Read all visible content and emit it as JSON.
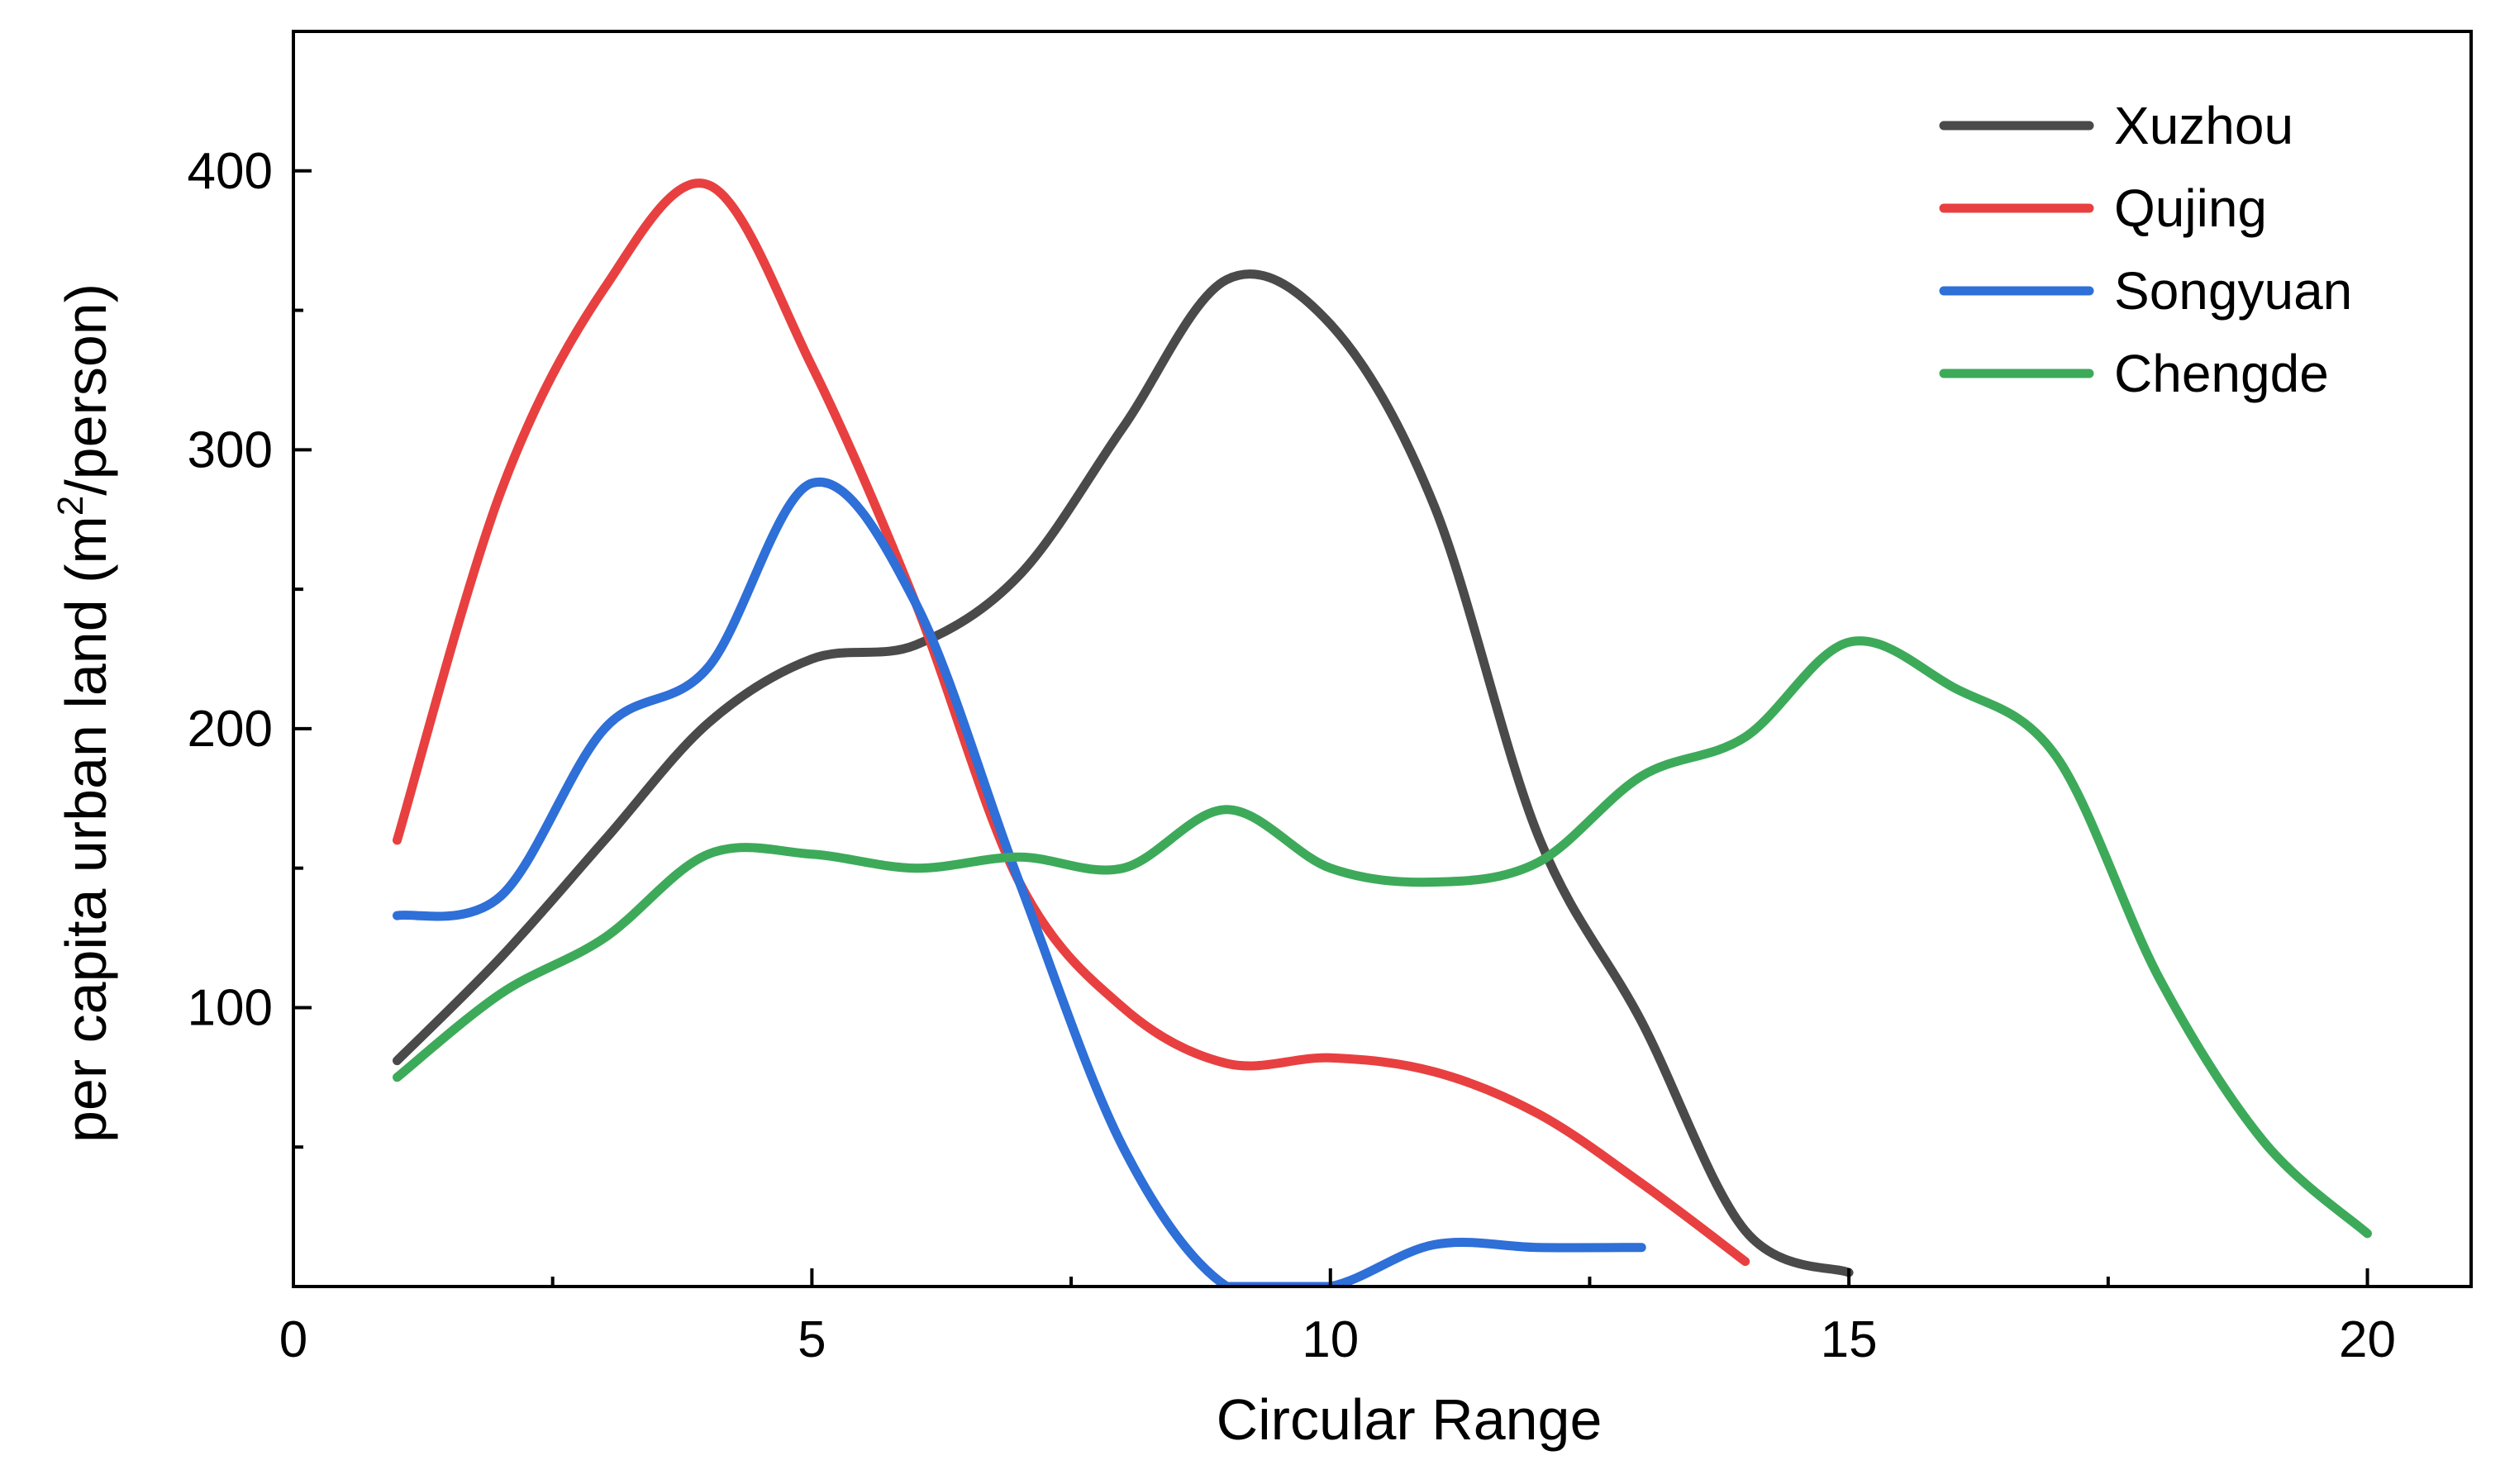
{
  "chart_data": {
    "type": "line",
    "title": "",
    "xlabel": "Circular Range",
    "ylabel": {
      "prefix": "per capita urban land (m",
      "sup": "2",
      "suffix": "/person)"
    },
    "xlim": [
      0,
      21
    ],
    "ylim": [
      0,
      450
    ],
    "xticks": [
      0,
      5,
      10,
      15,
      20
    ],
    "xtick_labels": [
      "0",
      "5",
      "10",
      "15",
      "20"
    ],
    "yticks": [
      100,
      200,
      300,
      400
    ],
    "ytick_labels": [
      "100",
      "200",
      "300",
      "400"
    ],
    "x_minor_step": 2.5,
    "y_minor_step": 50,
    "legend_position": "top-right",
    "grid": false,
    "series": [
      {
        "name": "Xuzhou",
        "color": "#4a4a4a",
        "points": [
          [
            1,
            81
          ],
          [
            2,
            118
          ],
          [
            3,
            160
          ],
          [
            4,
            202
          ],
          [
            5,
            225
          ],
          [
            6,
            230
          ],
          [
            7,
            255
          ],
          [
            8,
            308
          ],
          [
            9,
            361
          ],
          [
            10,
            345
          ],
          [
            11,
            280
          ],
          [
            12,
            162
          ],
          [
            13,
            95
          ],
          [
            14,
            20
          ],
          [
            15,
            5
          ]
        ]
      },
      {
        "name": "Qujing",
        "color": "#e84040",
        "points": [
          [
            1,
            160
          ],
          [
            2,
            285
          ],
          [
            3,
            358
          ],
          [
            4,
            395
          ],
          [
            5,
            330
          ],
          [
            6,
            245
          ],
          [
            7,
            145
          ],
          [
            8,
            100
          ],
          [
            9,
            80
          ],
          [
            10,
            82
          ],
          [
            11,
            77
          ],
          [
            12,
            62
          ],
          [
            13,
            37
          ],
          [
            14,
            9
          ]
        ]
      },
      {
        "name": "Songyuan",
        "color": "#2e6fd8",
        "points": [
          [
            1,
            133
          ],
          [
            2,
            140
          ],
          [
            3,
            200
          ],
          [
            4,
            222
          ],
          [
            5,
            288
          ],
          [
            6,
            245
          ],
          [
            7,
            145
          ],
          [
            8,
            50
          ],
          [
            9,
            0
          ],
          [
            10,
            0
          ],
          [
            11,
            15
          ],
          [
            12,
            14
          ],
          [
            13,
            14
          ]
        ]
      },
      {
        "name": "Chengde",
        "color": "#3daa5a",
        "points": [
          [
            1,
            75
          ],
          [
            2,
            105
          ],
          [
            3,
            125
          ],
          [
            4,
            155
          ],
          [
            5,
            155
          ],
          [
            6,
            150
          ],
          [
            7,
            154
          ],
          [
            8,
            150
          ],
          [
            9,
            171
          ],
          [
            10,
            150
          ],
          [
            11,
            145
          ],
          [
            12,
            152
          ],
          [
            13,
            183
          ],
          [
            14,
            197
          ],
          [
            15,
            231
          ],
          [
            16,
            215
          ],
          [
            17,
            190
          ],
          [
            18,
            110
          ],
          [
            19,
            52
          ],
          [
            20,
            19
          ]
        ]
      }
    ]
  }
}
